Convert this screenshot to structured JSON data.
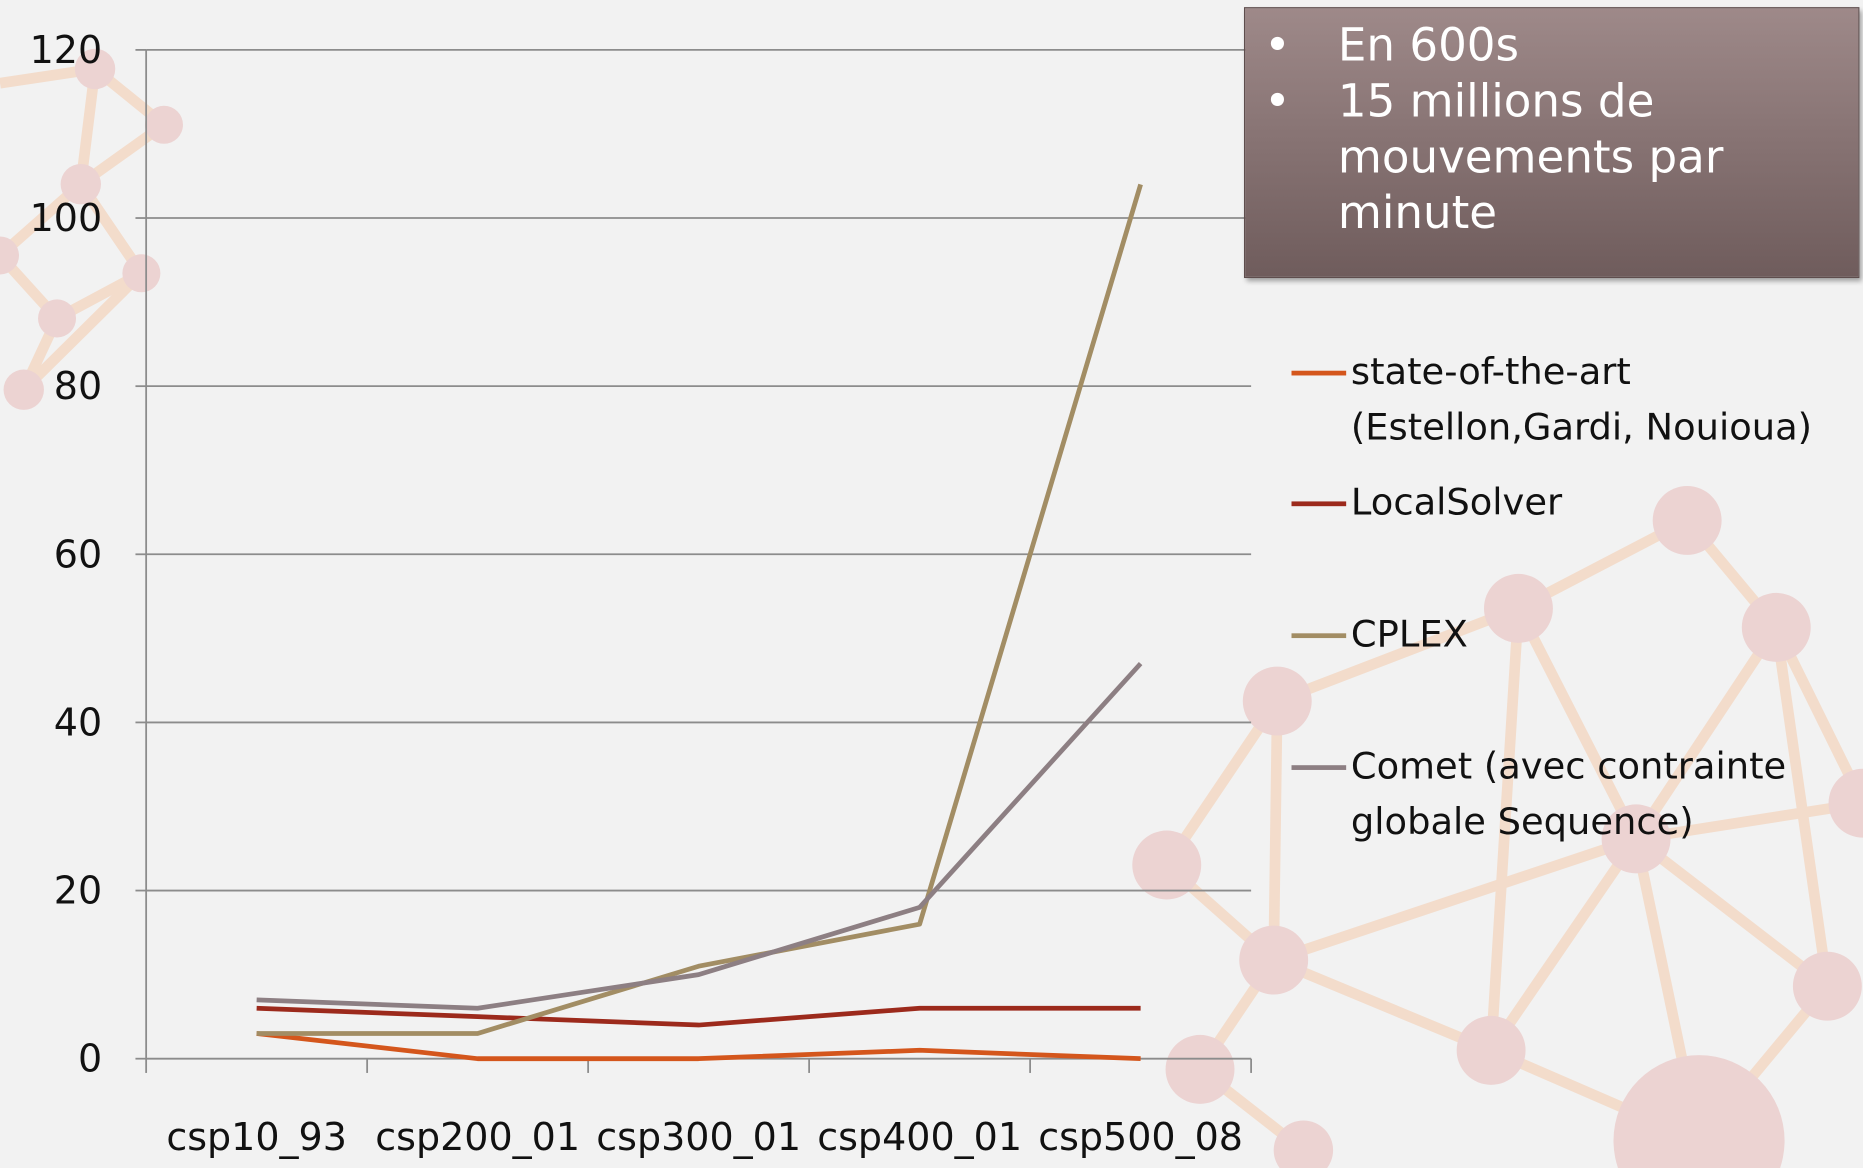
{
  "chart_data": {
    "type": "line",
    "annotations": [
      "En 600s",
      "15 millions de mouvements par minute"
    ],
    "categories": [
      "csp10_93",
      "csp200_01",
      "csp300_01",
      "csp400_01",
      "csp500_08"
    ],
    "series": [
      {
        "name": "state-of-the-art (Estellon,Gardi, Nouioua)",
        "color": "#d4561c",
        "values": [
          3,
          0,
          0,
          1,
          0
        ]
      },
      {
        "name": "LocalSolver",
        "color": "#9c2a1c",
        "values": [
          6,
          5,
          4,
          6,
          6
        ]
      },
      {
        "name": "CPLEX",
        "color": "#a28d64",
        "values": [
          3,
          3,
          11,
          16,
          104
        ]
      },
      {
        "name": "Comet (avec contrainte globale Sequence)",
        "color": "#8d7f83",
        "values": [
          7,
          6,
          10,
          18,
          47
        ]
      }
    ],
    "ylim": [
      0,
      120
    ],
    "yticks": [
      0,
      20,
      40,
      60,
      80,
      100,
      120
    ],
    "grid": true
  }
}
